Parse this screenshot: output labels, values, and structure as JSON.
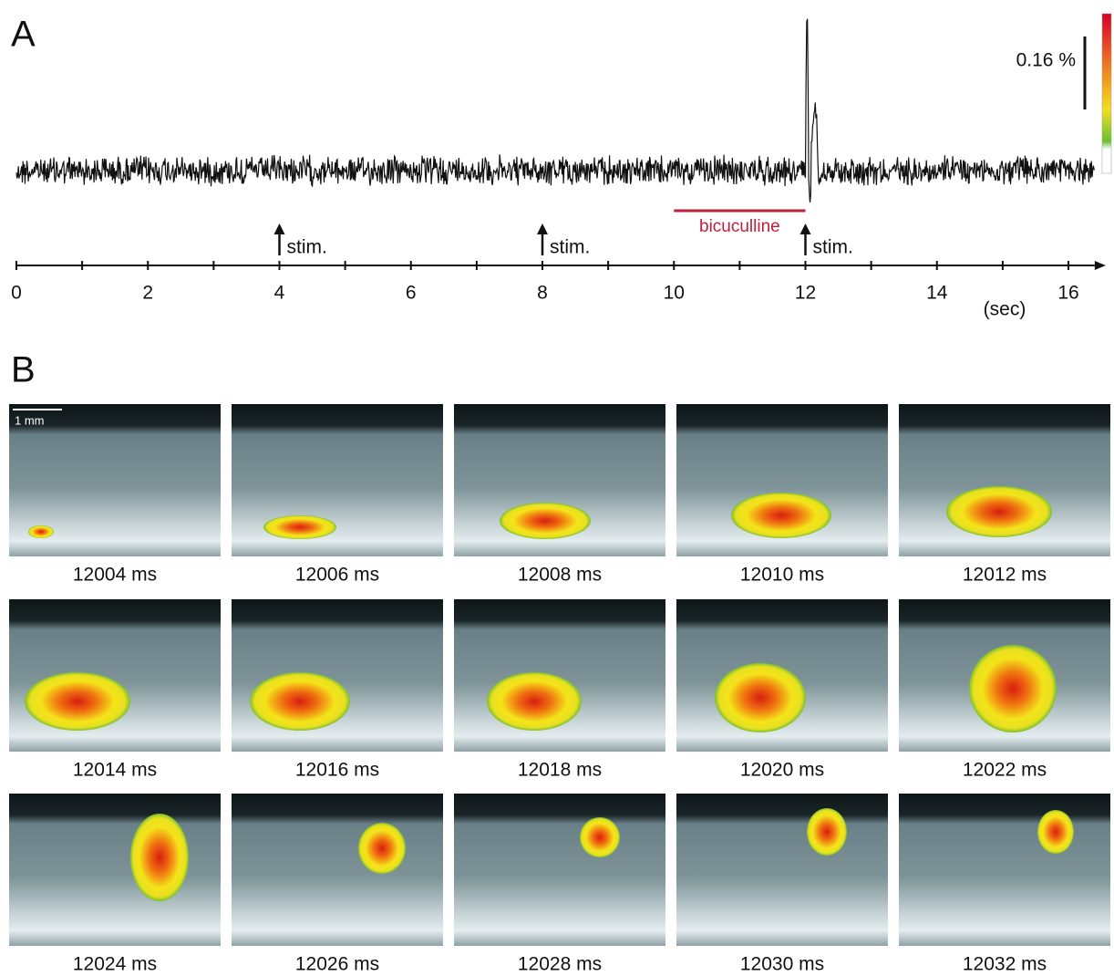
{
  "panel_a": {
    "label": "A",
    "scale_bar": "0.16 %",
    "x_axis": {
      "xlim": [
        0,
        16.4
      ],
      "ticks": [
        0,
        2,
        4,
        6,
        8,
        10,
        12,
        14,
        16
      ],
      "minor_ticks": [
        1,
        3,
        5,
        7,
        9,
        11,
        13,
        15
      ],
      "unit": "(sec)"
    },
    "stimuli": [
      {
        "time": 4,
        "label": "stim."
      },
      {
        "time": 8,
        "label": "stim."
      },
      {
        "time": 12,
        "label": "stim."
      }
    ],
    "drug": {
      "label": "bicuculline",
      "start": 10,
      "end": 12
    }
  },
  "panel_b": {
    "label": "B",
    "scale_bar": "1 mm",
    "frames": [
      "12004 ms",
      "12006 ms",
      "12008 ms",
      "12010 ms",
      "12012 ms",
      "12014 ms",
      "12016 ms",
      "12018 ms",
      "12020 ms",
      "12022 ms",
      "12024 ms",
      "12026 ms",
      "12028 ms",
      "12030 ms",
      "12032 ms"
    ]
  }
}
